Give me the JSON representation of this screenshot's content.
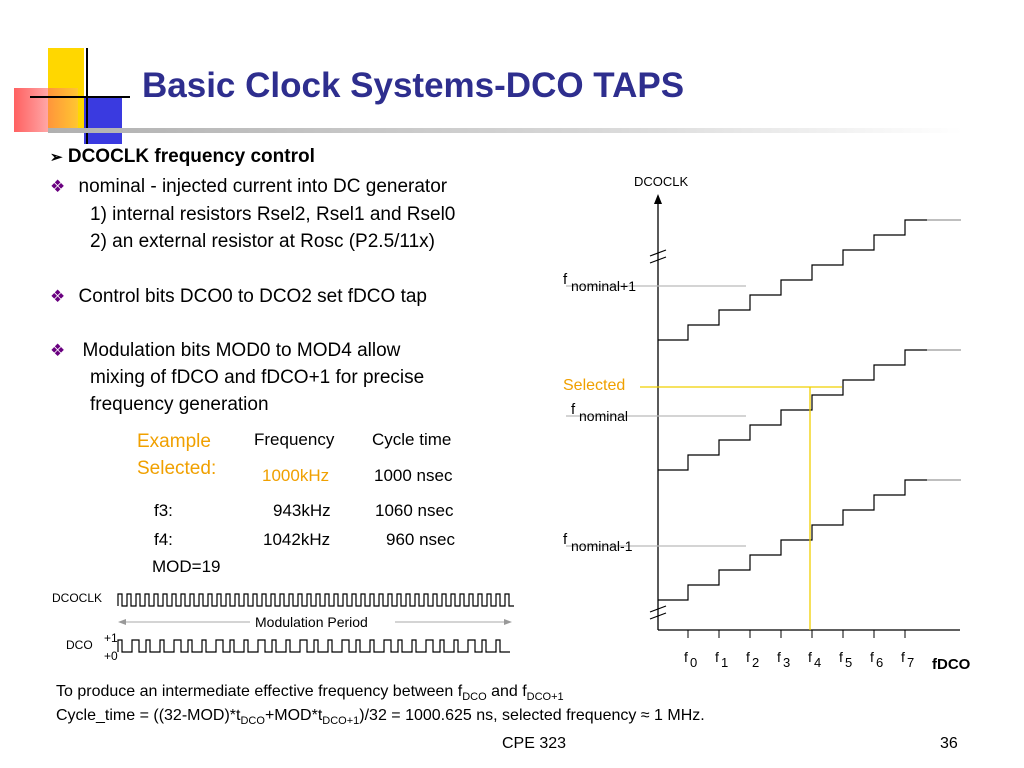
{
  "title": "Basic Clock Systems-DCO TAPS",
  "bullets": {
    "heading": "DCOCLK frequency control",
    "b1": "nominal - injected current into DC generator",
    "b1_sub1": "1) internal resistors Rsel2, Rsel1 and Rsel0",
    "b1_sub2": "2) an external resistor at Rosc (P2.5/11x)",
    "b2": "Control bits DCO0 to DCO2 set fDCO tap",
    "b3_l1": "Modulation bits MOD0 to MOD4 allow",
    "b3_l2": "mixing of fDCO and fDCO+1 for precise",
    "b3_l3": "frequency generation"
  },
  "table": {
    "example_l1": "Example",
    "example_l2": "Selected:",
    "col_freq": "Frequency",
    "col_cycle": "Cycle time",
    "sel_freq": "1000kHz",
    "sel_cycle": "1000 nsec",
    "rows": [
      {
        "label": "f3:",
        "freq": "943kHz",
        "cycle": "1060 nsec"
      },
      {
        "label": "f4:",
        "freq": "1042kHz",
        "cycle": "960 nsec"
      }
    ],
    "mod": "MOD=19"
  },
  "timing": {
    "dcoclk": "DCOCLK",
    "dco": "DCO",
    "plus1": "+1",
    "plus0": "+0",
    "period": "Modulation Period"
  },
  "graph": {
    "y_title": "DCOCLK",
    "f": "f",
    "nominal_plus1": "nominal+1",
    "selected": "Selected",
    "nominal": "nominal",
    "nominal_minus1": "nominal-1",
    "x_subs": [
      "0",
      "1",
      "2",
      "3",
      "4",
      "5",
      "6",
      "7"
    ],
    "x_title": "fDCO"
  },
  "footer": {
    "line1_a": "To produce an intermediate effective frequency between f",
    "line1_sub1": "DCO",
    "line1_b": " and f",
    "line1_sub2": "DCO+1",
    "line2_a": "Cycle_time = ((32-MOD)*t",
    "line2_sub1": "DCO",
    "line2_b": "+MOD*t",
    "line2_sub2": "DCO+1",
    "line2_c": ")/32 = 1000.625 ns, selected frequency ≈ 1 MHz.",
    "course": "CPE 323",
    "page": "36"
  },
  "colors": {
    "title": "#2e2e8e",
    "accent": "#f0a000",
    "bullet": "#6a0080",
    "yellow": "#ffd700",
    "red": "#ff5050",
    "blue": "#3a3ae0"
  }
}
